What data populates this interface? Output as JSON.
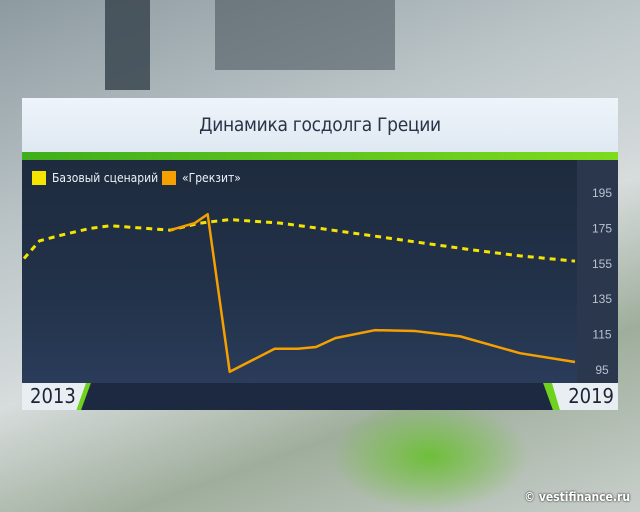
{
  "title": "Динамика госдолга Греции",
  "watermark": "© vestifinance.ru",
  "colors": {
    "baseline": "#f5e400",
    "grexit": "#f5a000",
    "accent_green": "#6fd21e"
  },
  "chart_data": {
    "type": "line",
    "title": "Динамика госдолга Греции",
    "xlabel": "",
    "ylabel": "",
    "x_range_labels": [
      "2013",
      "2019"
    ],
    "xlim": [
      2013,
      2019
    ],
    "ylim": [
      90,
      205
    ],
    "yticks": [
      195,
      175,
      155,
      135,
      115,
      95
    ],
    "y_axis_position": "right",
    "legend_placement": "top-left",
    "grid": false,
    "series": [
      {
        "name": "Базовый сценарий",
        "style": "dashed",
        "color": "#f5e400",
        "x": [
          2013.0,
          2013.17,
          2013.39,
          2013.72,
          2013.94,
          2014.59,
          2014.92,
          2015.24,
          2015.79,
          2016.22,
          2016.77,
          2017.31,
          2017.86,
          2018.4,
          2019.0
        ],
        "y": [
          158,
          168,
          171,
          175,
          176.5,
          174,
          178,
          180,
          178,
          175,
          171,
          167,
          163,
          159.5,
          156.5
        ]
      },
      {
        "name": "«Грекзит»",
        "style": "solid",
        "color": "#f5a000",
        "x": [
          2014.59,
          2014.86,
          2015.0,
          2015.24,
          2015.73,
          2015.98,
          2016.18,
          2016.39,
          2016.82,
          2017.26,
          2017.75,
          2018.4,
          2019.0
        ],
        "y": [
          174,
          178,
          183,
          94,
          107,
          107,
          108,
          113,
          117.5,
          117,
          114,
          104.5,
          99.5
        ]
      }
    ]
  }
}
